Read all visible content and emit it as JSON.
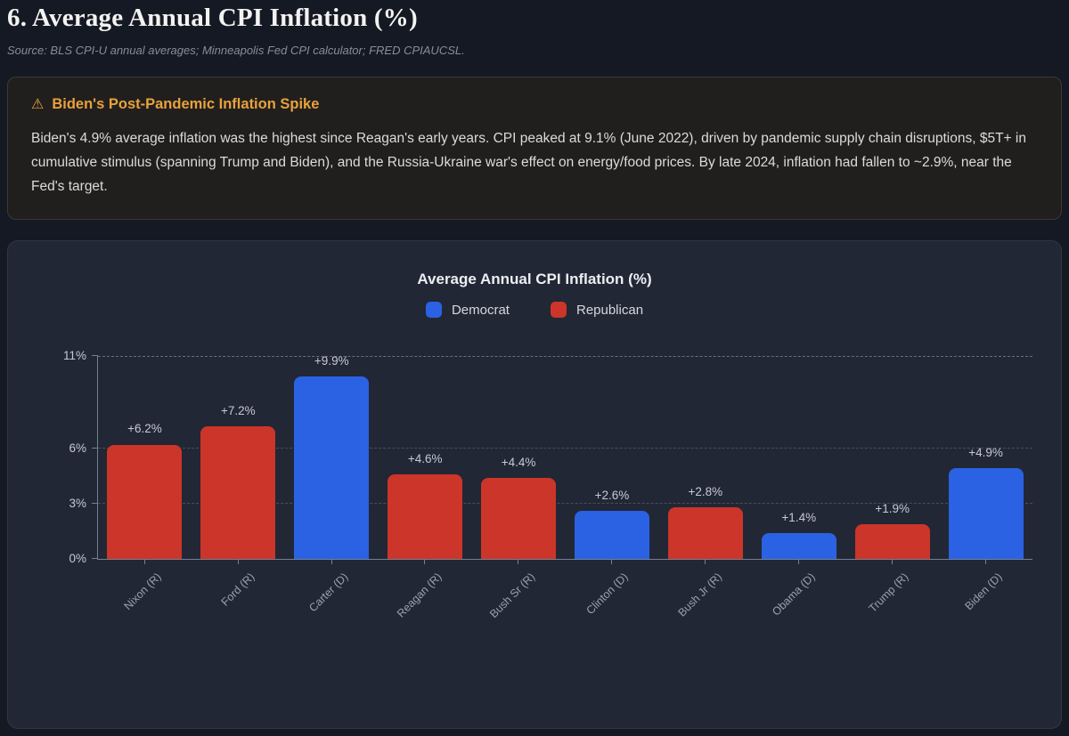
{
  "page": {
    "title": "6. Average Annual CPI Inflation (%)",
    "source": "Source: BLS CPI-U annual averages; Minneapolis Fed CPI calculator; FRED CPIAUCSL."
  },
  "callout": {
    "icon": "warning-triangle-icon",
    "icon_glyph": "⚠",
    "title": "Biden's Post-Pandemic Inflation Spike",
    "body": "Biden's 4.9% average inflation was the highest since Reagan's early years. CPI peaked at 9.1% (June 2022), driven by pandemic supply chain disruptions, $5T+ in cumulative stimulus (spanning Trump and Biden), and the Russia-Ukraine war's effect on energy/food prices. By late 2024, inflation had fallen to ~2.9%, near the Fed's target.",
    "accent_color": "#e9a13c"
  },
  "chart_data": {
    "type": "bar",
    "title": "Average Annual CPI Inflation (%)",
    "categories": [
      "Nixon (R)",
      "Ford (R)",
      "Carter (D)",
      "Reagan (R)",
      "Bush Sr (R)",
      "Clinton (D)",
      "Bush Jr (R)",
      "Obama (D)",
      "Trump (R)",
      "Biden (D)"
    ],
    "values": [
      6.2,
      7.2,
      9.9,
      4.6,
      4.4,
      2.6,
      2.8,
      1.4,
      1.9,
      4.9
    ],
    "value_labels": [
      "+6.2%",
      "+7.2%",
      "+9.9%",
      "+4.6%",
      "+4.4%",
      "+2.6%",
      "+2.8%",
      "+1.4%",
      "+1.9%",
      "+4.9%"
    ],
    "parties": [
      "R",
      "R",
      "D",
      "R",
      "R",
      "D",
      "R",
      "D",
      "R",
      "D"
    ],
    "party_colors": {
      "D": "#2b62e3",
      "R": "#cc3529"
    },
    "legend": [
      {
        "label": "Democrat",
        "color": "#2b62e3"
      },
      {
        "label": "Republican",
        "color": "#cc3529"
      }
    ],
    "legend_position": "top-center",
    "ylim": [
      0,
      11
    ],
    "yticks": [
      {
        "value": 0,
        "label": "0%"
      },
      {
        "value": 3,
        "label": "3%"
      },
      {
        "value": 6,
        "label": "6%"
      },
      {
        "value": 11,
        "label": "11%"
      }
    ],
    "grid": {
      "style": "dashed-horizontal",
      "at": [
        3,
        6,
        11
      ]
    },
    "xlabel": "",
    "ylabel": "",
    "x_tick_rotation_deg": 45
  }
}
